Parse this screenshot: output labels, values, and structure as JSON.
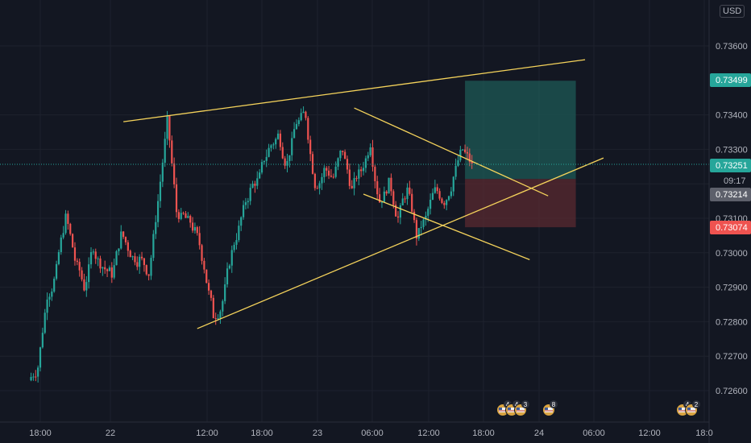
{
  "axis": {
    "currency": "USD",
    "y_ticks": [
      "0.73600",
      "0.73400",
      "0.73300",
      "0.73200",
      "0.73100",
      "0.73000",
      "0.72900",
      "0.72800",
      "0.72700",
      "0.72600"
    ],
    "x_ticks": [
      "18:00",
      "22",
      "12:00",
      "18:00",
      "23",
      "06:00",
      "12:00",
      "18:00",
      "24",
      "06:00",
      "12:00",
      "18:0"
    ]
  },
  "price_labels": {
    "target": "0.73499",
    "last": "0.73251",
    "countdown": "09:17",
    "entry": "0.73214",
    "stop": "0.73074"
  },
  "events": [
    {
      "group": "left",
      "counts": [
        "4",
        "4",
        "3"
      ]
    },
    {
      "group": "left-single",
      "counts": [
        "8"
      ]
    },
    {
      "group": "right",
      "counts": [
        "4",
        "2"
      ]
    }
  ],
  "colors": {
    "background": "#131722",
    "up": "#26a69a",
    "down": "#ef5350",
    "trendline": "#f5d35b",
    "profit_zone": "#1e5a55",
    "loss_zone": "#5a2a30"
  },
  "chart_data": {
    "type": "candlestick",
    "title": "",
    "ylim": [
      0.7257,
      0.7367
    ],
    "x": [
      "21 17:00",
      "21 18:00",
      "21 19:00",
      "21 20:00",
      "21 21:00",
      "21 22:00",
      "21 23:00",
      "22 00:00",
      "22 01:00",
      "22 02:00",
      "22 03:00",
      "22 04:00",
      "22 05:00",
      "22 06:00",
      "22 07:00",
      "22 08:00",
      "22 09:00",
      "22 10:00",
      "22 11:00",
      "22 12:00",
      "22 13:00",
      "22 14:00",
      "22 15:00",
      "22 16:00",
      "22 17:00",
      "22 18:00",
      "22 19:00",
      "22 20:00",
      "22 21:00",
      "22 22:00",
      "22 23:00",
      "23 00:00",
      "23 01:00",
      "23 02:00",
      "23 03:00",
      "23 04:00",
      "23 05:00",
      "23 06:00",
      "23 07:00",
      "23 08:00",
      "23 09:00",
      "23 10:00",
      "23 11:00",
      "23 12:00",
      "23 13:00",
      "23 14:00",
      "23 15:00",
      "23 16:00"
    ],
    "close": [
      0.7267,
      0.7288,
      0.7295,
      0.731,
      0.7298,
      0.729,
      0.7302,
      0.7296,
      0.7294,
      0.7305,
      0.73,
      0.7298,
      0.7294,
      0.7315,
      0.7338,
      0.7312,
      0.731,
      0.7306,
      0.7296,
      0.7282,
      0.7286,
      0.73,
      0.731,
      0.7318,
      0.7322,
      0.733,
      0.7334,
      0.7326,
      0.7338,
      0.734,
      0.732,
      0.7324,
      0.7322,
      0.733,
      0.7318,
      0.7324,
      0.7332,
      0.7315,
      0.732,
      0.731,
      0.7318,
      0.7305,
      0.731,
      0.7318,
      0.7315,
      0.7322,
      0.733,
      0.7325
    ],
    "trendlines": [
      {
        "name": "upper",
        "from": [
          "22 03:00",
          0.7338
        ],
        "to": [
          "24 05:00",
          0.7356
        ]
      },
      {
        "name": "lower",
        "from": [
          "22 11:00",
          0.7278
        ],
        "to": [
          "24 07:00",
          0.73275
        ]
      },
      {
        "name": "channel-top",
        "from": [
          "23 04:00",
          0.7342
        ],
        "to": [
          "24 01:00",
          0.73165
        ]
      },
      {
        "name": "channel-bottom",
        "from": [
          "23 05:00",
          0.7317
        ],
        "to": [
          "23 23:00",
          0.7298
        ]
      }
    ],
    "position": {
      "entry": 0.73214,
      "target": 0.73499,
      "stop": 0.73074,
      "from": "23 16:00",
      "to": "24 04:00"
    }
  }
}
